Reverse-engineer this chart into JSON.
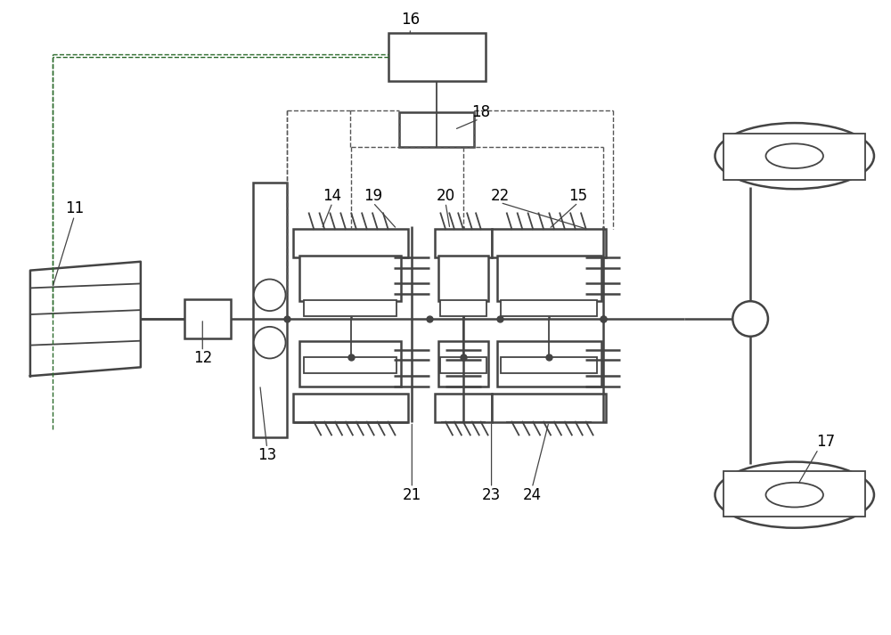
{
  "bg_color": "#ffffff",
  "lc": "#444444",
  "dc": "#555555",
  "gc": "#2a6a2a",
  "lw": 1.3,
  "lw2": 1.8
}
